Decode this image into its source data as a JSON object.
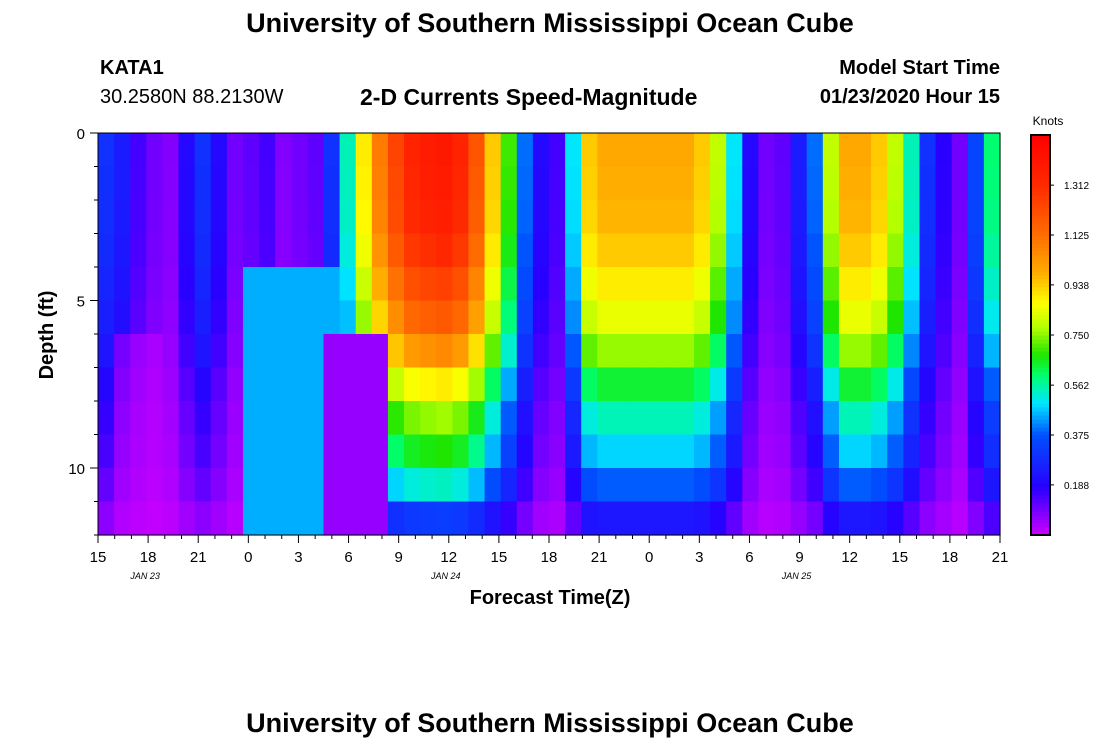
{
  "header": {
    "title": "University of Southern Mississippi Ocean Cube",
    "station": "KATA1",
    "coords": "30.2580N 88.2130W",
    "subtitle": "2-D Currents Speed-Magnitude",
    "model_start_label": "Model Start Time",
    "model_start_value": "01/23/2020 Hour 15"
  },
  "footer": {
    "title": "University of Southern Mississippi Ocean Cube"
  },
  "chart_data": {
    "type": "heatmap",
    "title": "2-D Currents Speed-Magnitude",
    "xlabel": "Forecast Time(Z)",
    "ylabel": "Depth (ft)",
    "x_tick_labels": [
      "15",
      "18",
      "21",
      "0",
      "3",
      "6",
      "9",
      "12",
      "15",
      "18",
      "21",
      "0",
      "3",
      "6",
      "9",
      "12",
      "15",
      "18",
      "21"
    ],
    "date_labels": [
      {
        "label": "JAN 23",
        "tick_index": 1
      },
      {
        "label": "JAN 24",
        "tick_index": 7
      },
      {
        "label": "JAN 25",
        "tick_index": 14
      }
    ],
    "x_range_hours": [
      0,
      54
    ],
    "y_tick_labels": [
      {
        "value": 0,
        "label": "0"
      },
      {
        "value": 5,
        "label": "5"
      },
      {
        "value": 10,
        "label": "10"
      }
    ],
    "y_range_ft": [
      0,
      12
    ],
    "colorbar": {
      "unit": "Knots",
      "range": [
        0,
        1.5
      ],
      "tick_values": [
        0.188,
        0.375,
        0.562,
        0.75,
        0.938,
        1.125,
        1.312
      ],
      "tick_labels": [
        "0.188",
        "0.375",
        "0.562",
        "0.750",
        "0.938",
        "1.125",
        "1.312"
      ]
    },
    "depth_rows_ft": [
      0.5,
      1.5,
      2.5,
      3.5,
      4.5,
      5.5,
      6.5,
      7.5,
      8.5,
      9.5,
      10.5,
      11.5
    ],
    "surface_speed_knots": [
      0.3,
      0.25,
      0.15,
      0.1,
      0.08,
      0.2,
      0.3,
      0.2,
      0.1,
      0.12,
      0.15,
      0.08,
      0.1,
      0.12,
      0.3,
      0.55,
      0.9,
      1.1,
      1.25,
      1.35,
      1.38,
      1.4,
      1.35,
      1.2,
      0.95,
      0.7,
      0.4,
      0.2,
      0.15,
      0.5,
      0.95,
      1.0,
      1.0,
      1.0,
      1.0,
      1.0,
      1.0,
      0.95,
      0.8,
      0.5,
      0.2,
      0.1,
      0.12,
      0.25,
      0.4,
      0.8,
      1.0,
      1.0,
      0.95,
      0.8,
      0.55,
      0.3,
      0.18,
      0.1,
      0.35,
      0.6
    ],
    "depth_profile": [
      {
        "depth_ft": 0,
        "factor": 1.0
      },
      {
        "depth_ft": 3,
        "factor": 0.97
      },
      {
        "depth_ft": 6,
        "factor": 0.82
      },
      {
        "depth_ft": 8,
        "factor": 0.58
      },
      {
        "depth_ft": 10,
        "factor": 0.45
      },
      {
        "depth_ft": 11,
        "factor": 0.32
      },
      {
        "depth_ft": 12,
        "factor": 0.15
      }
    ],
    "anomalies": [
      {
        "x_hours_from": 0.5,
        "x_hours_to": 4,
        "depth_ft_from": 6,
        "depth_ft_to": 12,
        "factor": 0.5
      },
      {
        "x_hours_from": 9,
        "x_hours_to": 14,
        "depth_ft_from": 4,
        "depth_ft_to": 12,
        "speed_knots": 0.45
      },
      {
        "x_hours_from": 13.5,
        "x_hours_to": 17,
        "depth_ft_from": 6,
        "depth_ft_to": 12,
        "speed_knots": 0.06
      }
    ],
    "grid": false,
    "legend": "colorbar-right"
  }
}
